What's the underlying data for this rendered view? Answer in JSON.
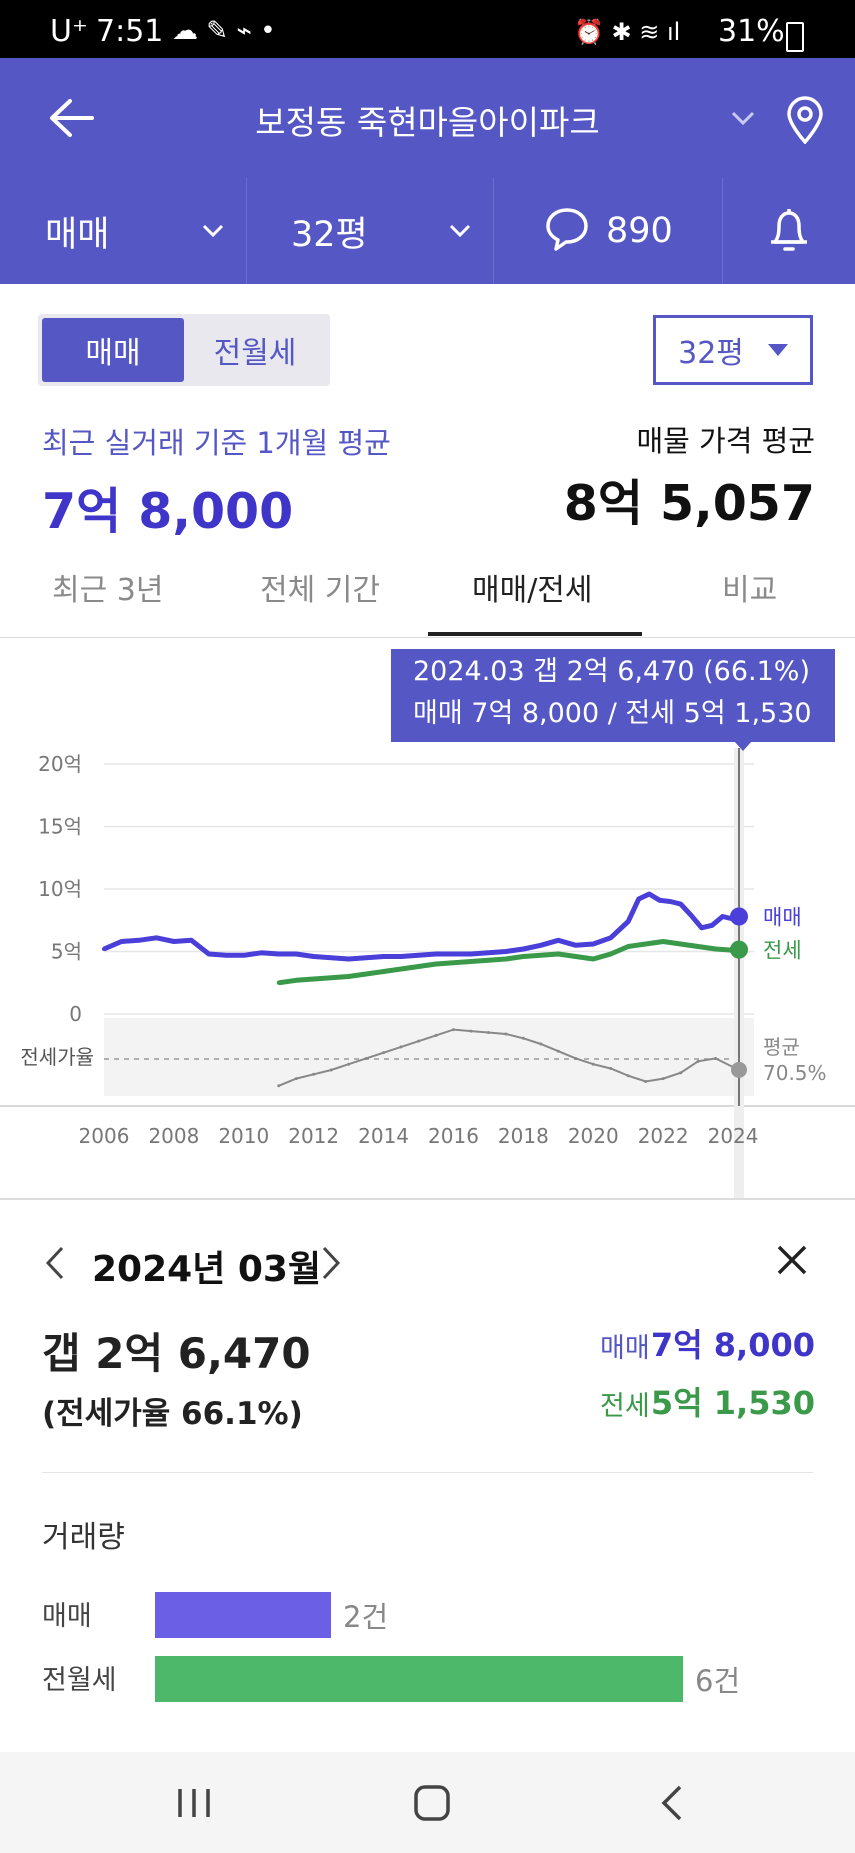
{
  "status_bar": {
    "carrier": "U⁺",
    "time": "7:51",
    "battery": "31%"
  },
  "header": {
    "title": "보정동 죽현마을아이파크"
  },
  "subbar": {
    "trade_type": "매매",
    "size": "32평",
    "comment_count": "890"
  },
  "toggle": {
    "sale": "매매",
    "rent": "전월세"
  },
  "size_select": "32평",
  "summary": {
    "recent_label": "최근 실거래 기준 1개월 평균",
    "recent_value": "7억 8,000",
    "listing_label": "매물 가격 평균",
    "listing_value": "8억 5,057"
  },
  "tabs": [
    "최근 3년",
    "전체 기간",
    "매매/전세",
    "비교"
  ],
  "tooltip": {
    "line1": "2024.03  갭 2억 6,470 (66.1%)",
    "line2": "매매 7억 8,000 / 전세 5억 1,530"
  },
  "chart_data": {
    "type": "line",
    "ylabels": [
      "20억",
      "15억",
      "10억",
      "5억",
      "0"
    ],
    "xlabels": [
      "2006",
      "2008",
      "2010",
      "2012",
      "2014",
      "2016",
      "2018",
      "2020",
      "2022",
      "2024"
    ],
    "ylim": [
      0,
      20
    ],
    "yunit": "억",
    "ratio_label": "전세가율",
    "avg_label": "평균",
    "avg_value": "70.5%",
    "grid": true,
    "series": [
      {
        "name": "매매",
        "color": "#4a3fd9",
        "x": [
          2006.0,
          2006.5,
          2007.0,
          2007.5,
          2008.0,
          2008.5,
          2009.0,
          2009.5,
          2010.0,
          2010.5,
          2011.0,
          2011.5,
          2012.0,
          2012.5,
          2013.0,
          2013.5,
          2014.0,
          2014.5,
          2015.0,
          2015.5,
          2016.0,
          2016.5,
          2017.0,
          2017.5,
          2018.0,
          2018.5,
          2019.0,
          2019.5,
          2020.0,
          2020.5,
          2021.0,
          2021.3,
          2021.6,
          2021.9,
          2022.2,
          2022.5,
          2022.8,
          2023.1,
          2023.4,
          2023.7,
          2024.0,
          2024.17
        ],
        "values": [
          5.2,
          5.8,
          5.9,
          6.1,
          5.8,
          5.9,
          4.8,
          4.7,
          4.7,
          4.9,
          4.8,
          4.8,
          4.6,
          4.5,
          4.4,
          4.5,
          4.6,
          4.6,
          4.7,
          4.8,
          4.8,
          4.8,
          4.9,
          5.0,
          5.2,
          5.5,
          5.9,
          5.5,
          5.6,
          6.1,
          7.4,
          9.2,
          9.6,
          9.1,
          9.0,
          8.8,
          7.9,
          6.9,
          7.1,
          7.8,
          7.6,
          7.8
        ]
      },
      {
        "name": "전세",
        "color": "#3a9a4a",
        "x": [
          2011.0,
          2011.5,
          2012.0,
          2012.5,
          2013.0,
          2013.5,
          2014.0,
          2014.5,
          2015.0,
          2015.5,
          2016.0,
          2016.5,
          2017.0,
          2017.5,
          2018.0,
          2018.5,
          2019.0,
          2019.5,
          2020.0,
          2020.5,
          2021.0,
          2021.5,
          2022.0,
          2022.5,
          2023.0,
          2023.5,
          2024.0,
          2024.17
        ],
        "values": [
          2.5,
          2.7,
          2.8,
          2.9,
          3.0,
          3.2,
          3.4,
          3.6,
          3.8,
          4.0,
          4.1,
          4.2,
          4.3,
          4.4,
          4.6,
          4.7,
          4.8,
          4.6,
          4.4,
          4.8,
          5.4,
          5.6,
          5.8,
          5.6,
          5.4,
          5.2,
          5.1,
          5.15
        ]
      }
    ],
    "ratio_series": {
      "name": "전세가율",
      "x": [
        2011.0,
        2011.5,
        2012.0,
        2012.5,
        2013.0,
        2013.5,
        2014.0,
        2014.5,
        2015.0,
        2015.5,
        2016.0,
        2016.5,
        2017.0,
        2017.5,
        2018.0,
        2018.5,
        2019.0,
        2019.5,
        2020.0,
        2020.5,
        2021.0,
        2021.5,
        2022.0,
        2022.5,
        2023.0,
        2023.5,
        2024.0,
        2024.17
      ],
      "values": [
        55,
        60,
        63,
        66,
        70,
        74,
        78,
        82,
        86,
        90,
        94,
        93,
        92,
        91,
        88,
        84,
        79,
        74,
        70,
        67,
        62,
        58,
        60,
        64,
        72,
        74,
        68,
        66.1
      ]
    },
    "selected_x": 2024.17
  },
  "detail": {
    "month": "2024년 03월",
    "gap": "갭 2억 6,470",
    "ratio": "(전세가율 66.1%)",
    "sale_label": "매매",
    "sale_value": "7억 8,000",
    "rent_label": "전세",
    "rent_value": "5억 1,530"
  },
  "volume": {
    "title": "거래량",
    "rows": [
      {
        "label": "매매",
        "count": 2,
        "text": "2건",
        "color": "#6b5fe6"
      },
      {
        "label": "전월세",
        "count": 6,
        "text": "6건",
        "color": "#4eb86a"
      }
    ]
  },
  "colors": {
    "primary": "#5457c4",
    "sale": "#4a3fd9",
    "rent": "#3a9a4a"
  }
}
